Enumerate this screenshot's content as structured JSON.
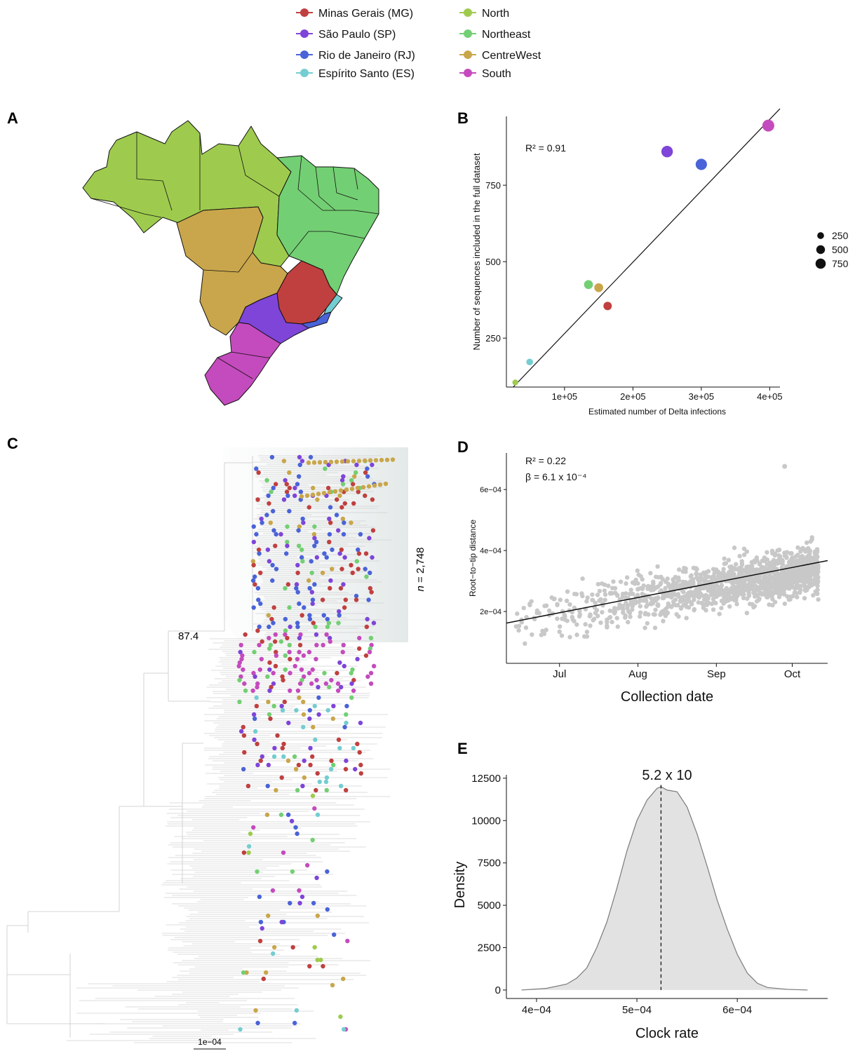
{
  "legend": {
    "items": [
      {
        "label": "Minas Gerais (MG)",
        "color": "#c0403f"
      },
      {
        "label": "São Paulo (SP)",
        "color": "#7e45d8"
      },
      {
        "label": "Rio de Janeiro (RJ)",
        "color": "#4a63d8"
      },
      {
        "label": "Espírito Santo (ES)",
        "color": "#74cdd0"
      },
      {
        "label": "North",
        "color": "#9ecb4e"
      },
      {
        "label": "Northeast",
        "color": "#73cf73"
      },
      {
        "label": "CentreWest",
        "color": "#c9a64b"
      },
      {
        "label": "South",
        "color": "#c44bbd"
      }
    ]
  },
  "panel_labels": {
    "a": "A",
    "b": "B",
    "c": "C",
    "d": "D",
    "e": "E"
  },
  "panel_a": {
    "regions": [
      {
        "name": "North",
        "color": "#9ecb4e"
      },
      {
        "name": "Northeast",
        "color": "#73cf73"
      },
      {
        "name": "CentreWest",
        "color": "#c9a64b"
      },
      {
        "name": "Minas Gerais (MG)",
        "color": "#c0403f"
      },
      {
        "name": "São Paulo (SP)",
        "color": "#7e45d8"
      },
      {
        "name": "Rio de Janeiro (RJ)",
        "color": "#4a63d8"
      },
      {
        "name": "Espírito Santo (ES)",
        "color": "#74cdd0"
      },
      {
        "name": "South",
        "color": "#c44bbd"
      }
    ]
  },
  "panel_c": {
    "node_support": "87.4",
    "n_label_italic": "n",
    "n_label_rest": " = 2,748",
    "scale_label": "1e−04"
  },
  "chart_data": [
    {
      "panel": "B",
      "type": "scatter",
      "xlabel": "Estimated number of Delta infections",
      "ylabel": "Number of sequences included in the full dataset",
      "annotation": "R² = 0.91",
      "xlim": [
        15000,
        415000
      ],
      "ylim": [
        90,
        975
      ],
      "x_ticks": [
        {
          "v": 100000,
          "label": "1e+05"
        },
        {
          "v": 200000,
          "label": "2e+05"
        },
        {
          "v": 300000,
          "label": "3e+05"
        },
        {
          "v": 400000,
          "label": "4e+05"
        }
      ],
      "y_ticks": [
        {
          "v": 250,
          "label": "250"
        },
        {
          "v": 500,
          "label": "500"
        },
        {
          "v": 750,
          "label": "750"
        }
      ],
      "size_legend": [
        {
          "v": 250,
          "label": "250"
        },
        {
          "v": 500,
          "label": "500"
        },
        {
          "v": 750,
          "label": "750"
        }
      ],
      "points": [
        {
          "group": "South",
          "x": 398000,
          "y": 945,
          "size": 945,
          "color": "#c44bbd"
        },
        {
          "group": "São Paulo (SP)",
          "x": 250000,
          "y": 860,
          "size": 860,
          "color": "#7e45d8"
        },
        {
          "group": "Rio de Janeiro (RJ)",
          "x": 300000,
          "y": 818,
          "size": 818,
          "color": "#4a63d8"
        },
        {
          "group": "Northeast",
          "x": 135000,
          "y": 425,
          "size": 425,
          "color": "#73cf73"
        },
        {
          "group": "CentreWest",
          "x": 150000,
          "y": 415,
          "size": 415,
          "color": "#c9a64b"
        },
        {
          "group": "Minas Gerais (MG)",
          "x": 163000,
          "y": 355,
          "size": 355,
          "color": "#c0403f"
        },
        {
          "group": "Espírito Santo (ES)",
          "x": 49000,
          "y": 172,
          "size": 172,
          "color": "#74cdd0"
        },
        {
          "group": "North",
          "x": 28000,
          "y": 105,
          "size": 105,
          "color": "#9ecb4e"
        }
      ],
      "fit_line": {
        "x": [
          25000,
          415000
        ],
        "y": [
          90,
          1000
        ]
      }
    },
    {
      "panel": "D",
      "type": "scatter",
      "xlabel": "Collection date",
      "ylabel": "Root−to−tip distance",
      "annotation_r2": "R² = 0.22",
      "annotation_beta": "β = 6.1 x 10⁻⁴",
      "x_categories_axis": [
        "Jul",
        "Aug",
        "Sep",
        "Oct"
      ],
      "x_range_dates": [
        "2021-06-10",
        "2021-10-15"
      ],
      "ylim": [
        3e-05,
        0.00072
      ],
      "y_ticks": [
        {
          "v": 0.0002,
          "label": "2e−04"
        },
        {
          "v": 0.0004,
          "label": "4e−04"
        },
        {
          "v": 0.0006,
          "label": "6e−04"
        }
      ],
      "fit_line": {
        "x": [
          "2021-06-10",
          "2021-10-15"
        ],
        "y": [
          0.000162,
          0.000367
        ]
      },
      "point_color": "#c8c8c8",
      "n_points_approx": 2748
    },
    {
      "panel": "E",
      "type": "area",
      "xlabel": "Clock rate",
      "ylabel": "Density",
      "annotation": "5.2 x 10",
      "xlim": [
        0.00037,
        0.00069
      ],
      "ylim": [
        -500,
        12700
      ],
      "x_ticks": [
        {
          "v": 0.0004,
          "label": "4e−04"
        },
        {
          "v": 0.0005,
          "label": "5e−04"
        },
        {
          "v": 0.0006,
          "label": "6e−04"
        }
      ],
      "y_ticks": [
        {
          "v": 0,
          "label": "0"
        },
        {
          "v": 2500,
          "label": "2500"
        },
        {
          "v": 5000,
          "label": "5000"
        },
        {
          "v": 7500,
          "label": "7500"
        },
        {
          "v": 10000,
          "label": "10000"
        },
        {
          "v": 12500,
          "label": "12500"
        }
      ],
      "mean_line": 0.000524,
      "curve": {
        "x": [
          0.000385,
          0.00041,
          0.00043,
          0.00044,
          0.00045,
          0.00046,
          0.00047,
          0.00048,
          0.00049,
          0.0005,
          0.00051,
          0.00052,
          0.000524,
          0.00053,
          0.00054,
          0.00055,
          0.00056,
          0.00057,
          0.00058,
          0.00059,
          0.0006,
          0.00061,
          0.00062,
          0.00063,
          0.00065,
          0.00067
        ],
        "y": [
          0,
          100,
          350,
          700,
          1300,
          2500,
          4000,
          6000,
          8200,
          10000,
          11200,
          11900,
          12000,
          11800,
          11700,
          10800,
          9200,
          7300,
          5300,
          3600,
          2100,
          1000,
          400,
          150,
          40,
          0
        ]
      },
      "fill_color": "#e2e2e2"
    }
  ]
}
